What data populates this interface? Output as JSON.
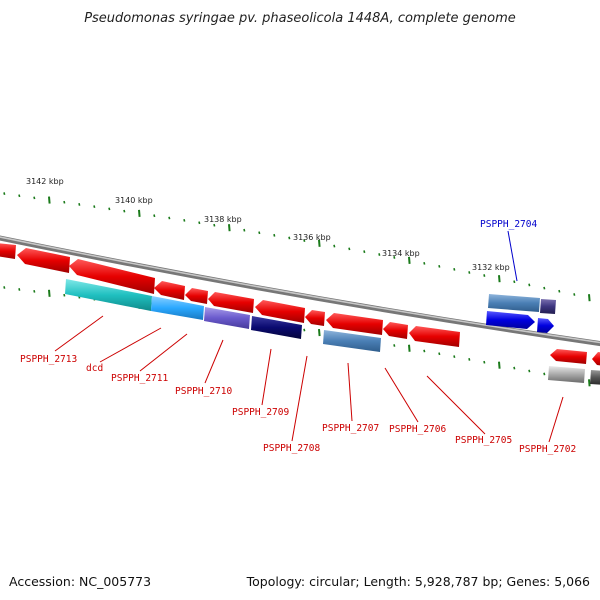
{
  "title": "Pseudomonas syringae pv. phaseolicola 1448A, complete genome",
  "footer": {
    "accession": "Accession: NC_005773",
    "summary": "Topology: circular; Length: 5,928,787 bp; Genes: 5,066"
  },
  "kbp_labels": [
    "3142 kbp",
    "3140 kbp",
    "3138 kbp",
    "3136 kbp",
    "3134 kbp",
    "3132 kbp"
  ],
  "gene_labels": [
    {
      "text": "PSPPH_2704",
      "color": "#0000cc"
    },
    {
      "text": "PSPPH_2713",
      "color": "#cc0000"
    },
    {
      "text": "dcd",
      "color": "#cc0000"
    },
    {
      "text": "PSPPH_2711",
      "color": "#cc0000"
    },
    {
      "text": "PSPPH_2710",
      "color": "#cc0000"
    },
    {
      "text": "PSPPH_2709",
      "color": "#cc0000"
    },
    {
      "text": "PSPPH_2708",
      "color": "#cc0000"
    },
    {
      "text": "PSPPH_2707",
      "color": "#cc0000"
    },
    {
      "text": "PSPPH_2706",
      "color": "#cc0000"
    },
    {
      "text": "PSPPH_2705",
      "color": "#cc0000"
    },
    {
      "text": "PSPPH_2702",
      "color": "#cc0000"
    }
  ],
  "colors": {
    "backbone": "#8a8a8a",
    "tick": "#1a7a1a",
    "gene_red": "#e60000",
    "gene_blue": "#0000e0",
    "gene_steel": "#4a7fb5",
    "gene_navy": "#0a0a70",
    "gene_cyan": "#20c0c0",
    "gene_sky": "#2aa8ff",
    "gene_violet": "#6a5acd",
    "gene_gray": "#a8a8a8"
  }
}
